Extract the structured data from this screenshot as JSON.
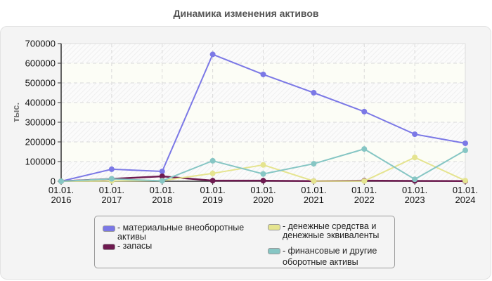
{
  "title": "Динамика изменения активов",
  "chart_data": {
    "type": "line",
    "title": "Динамика изменения активов",
    "xlabel": "",
    "ylabel": "тыс.",
    "ylim": [
      0,
      700000
    ],
    "yticks": [
      "0",
      "100000",
      "200000",
      "300000",
      "400000",
      "500000",
      "600000",
      "700000"
    ],
    "categories": [
      "01.01.\n2016",
      "01.01.\n2017",
      "01.01.\n2018",
      "01.01.\n2019",
      "01.01.\n2020",
      "01.01.\n2021",
      "01.01.\n2022",
      "01.01.\n2023",
      "01.01.\n2024"
    ],
    "grid": true,
    "legend_position": "bottom",
    "series": [
      {
        "name": "материальные внеоборотные активы",
        "color": "#7b78e6",
        "values": [
          0,
          61000,
          50000,
          645000,
          543000,
          450000,
          354000,
          239000,
          193000
        ]
      },
      {
        "name": "запасы",
        "color": "#6e1a50",
        "values": [
          0,
          12000,
          25000,
          3000,
          3000,
          1000,
          3000,
          2000,
          1000
        ]
      },
      {
        "name": "денежные средства и денежные эквиваленты",
        "color": "#e5e48f",
        "values": [
          0,
          2000,
          3000,
          40000,
          83000,
          1000,
          1000,
          121000,
          3000
        ]
      },
      {
        "name": "финансовые и другие оборотные активы",
        "color": "#86c6c4",
        "values": [
          0,
          12000,
          2000,
          104000,
          37000,
          89000,
          164000,
          10000,
          157000
        ]
      }
    ]
  },
  "axis": {
    "ylabel": "тыс."
  },
  "legend": {
    "items": [
      {
        "label": "- материальные внеоборотные\nактивы",
        "color": "#7b78e6"
      },
      {
        "label": "- запасы",
        "color": "#6e1a50"
      },
      {
        "label": "- денежные средства и\nденежные эквиваленты",
        "color": "#e5e48f"
      },
      {
        "label": "- финансовые и другие\nоборотные активы",
        "color": "#86c6c4"
      }
    ]
  }
}
